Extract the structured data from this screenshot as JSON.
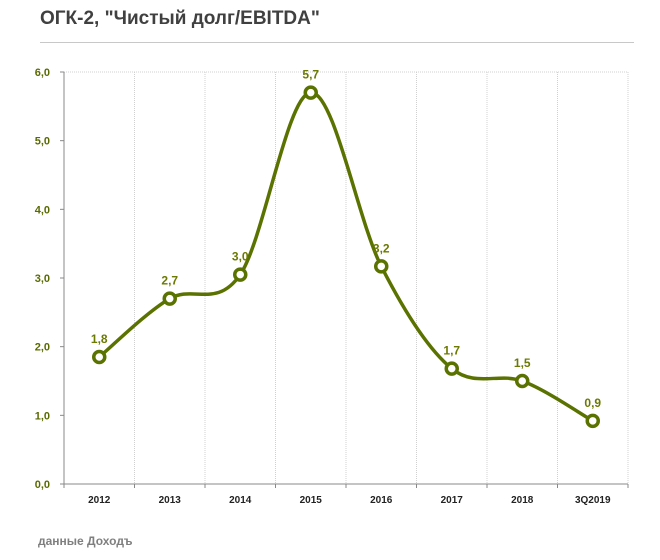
{
  "title": "ОГК-2, \"Чистый долг/EBITDA\"",
  "source": "данные Доходъ",
  "colors": {
    "line": "#5a7200",
    "label": "#6b7a00",
    "grid": "#d0d0d0"
  },
  "chart_data": {
    "type": "line",
    "title": "ОГК-2, \"Чистый долг/EBITDA\"",
    "xlabel": "",
    "ylabel": "",
    "categories": [
      "2012",
      "2013",
      "2014",
      "2015",
      "2016",
      "2017",
      "2018",
      "3Q2019"
    ],
    "series": [
      {
        "name": "Чистый долг/EBITDA",
        "values": [
          1.85,
          2.7,
          3.05,
          5.7,
          3.17,
          1.68,
          1.5,
          0.92
        ],
        "labels": [
          "1,8",
          "2,7",
          "3,0",
          "5,7",
          "3,2",
          "1,7",
          "1,5",
          "0,9"
        ]
      }
    ],
    "ylim": [
      0,
      6
    ],
    "yticks": [
      0,
      1,
      2,
      3,
      4,
      5,
      6
    ],
    "ytick_labels": [
      "0,0",
      "1,0",
      "2,0",
      "3,0",
      "4,0",
      "5,0",
      "6,0"
    ],
    "grid": true,
    "smooth": true,
    "legend": "none"
  }
}
